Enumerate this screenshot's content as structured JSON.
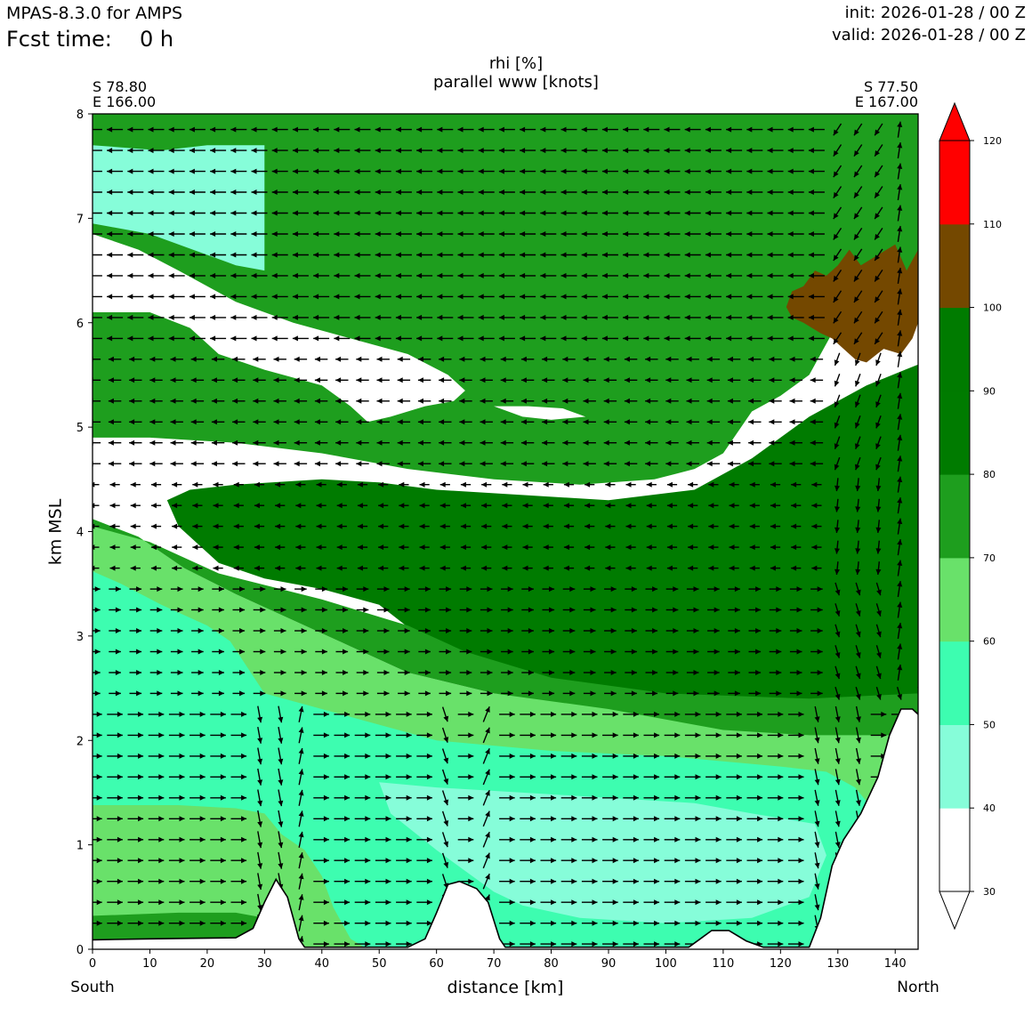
{
  "header": {
    "model": "MPAS-8.3.0 for AMPS",
    "fcst_label": "Fcst time:",
    "fcst_value": "0 h",
    "init": "init: 2026-01-28 / 00 Z",
    "valid": "valid: 2026-01-28 / 00 Z"
  },
  "chart_data": {
    "type": "heatmap",
    "title": "rhi [%]",
    "subtitle": "parallel www [knots]",
    "xlabel": "distance [km]",
    "ylabel": "km MSL",
    "xlim": [
      0,
      144
    ],
    "ylim": [
      0,
      8
    ],
    "x_ticks": [
      0,
      10,
      20,
      30,
      40,
      50,
      60,
      70,
      80,
      90,
      100,
      110,
      120,
      130,
      140
    ],
    "y_ticks": [
      0,
      1,
      2,
      3,
      4,
      5,
      6,
      7,
      8
    ],
    "left_end_label": "South",
    "right_end_label": "North",
    "start_point": {
      "lat": "S 78.80",
      "lon": "E 166.00"
    },
    "end_point": {
      "lat": "S 77.50",
      "lon": "E 167.00"
    },
    "colorbar": {
      "levels": [
        30,
        40,
        50,
        60,
        70,
        80,
        90,
        100,
        110,
        120
      ],
      "colors": [
        "#ffffff",
        "#86fdd9",
        "#3dfdb0",
        "#69e16a",
        "#1e9e1e",
        "#007b00",
        "#007b00",
        "#744800",
        "#ff0000"
      ],
      "extend": "both"
    },
    "terrain_profile": [
      [
        0,
        0.09
      ],
      [
        10,
        0.1
      ],
      [
        25,
        0.11
      ],
      [
        28,
        0.2
      ],
      [
        30,
        0.45
      ],
      [
        32,
        0.67
      ],
      [
        34,
        0.5
      ],
      [
        36,
        0.1
      ],
      [
        37,
        0.02
      ],
      [
        40,
        0.02
      ],
      [
        55,
        0.02
      ],
      [
        58,
        0.1
      ],
      [
        60,
        0.35
      ],
      [
        62,
        0.62
      ],
      [
        64,
        0.65
      ],
      [
        67,
        0.58
      ],
      [
        69,
        0.45
      ],
      [
        71,
        0.1
      ],
      [
        72,
        0.02
      ],
      [
        104,
        0.02
      ],
      [
        106,
        0.1
      ],
      [
        108,
        0.18
      ],
      [
        111,
        0.18
      ],
      [
        114,
        0.08
      ],
      [
        117,
        0.02
      ],
      [
        125,
        0.02
      ],
      [
        127,
        0.3
      ],
      [
        129,
        0.8
      ],
      [
        131,
        1.05
      ],
      [
        134,
        1.3
      ],
      [
        137,
        1.65
      ],
      [
        139,
        2.05
      ],
      [
        141,
        2.3
      ],
      [
        143,
        2.3
      ],
      [
        144,
        2.25
      ]
    ]
  }
}
